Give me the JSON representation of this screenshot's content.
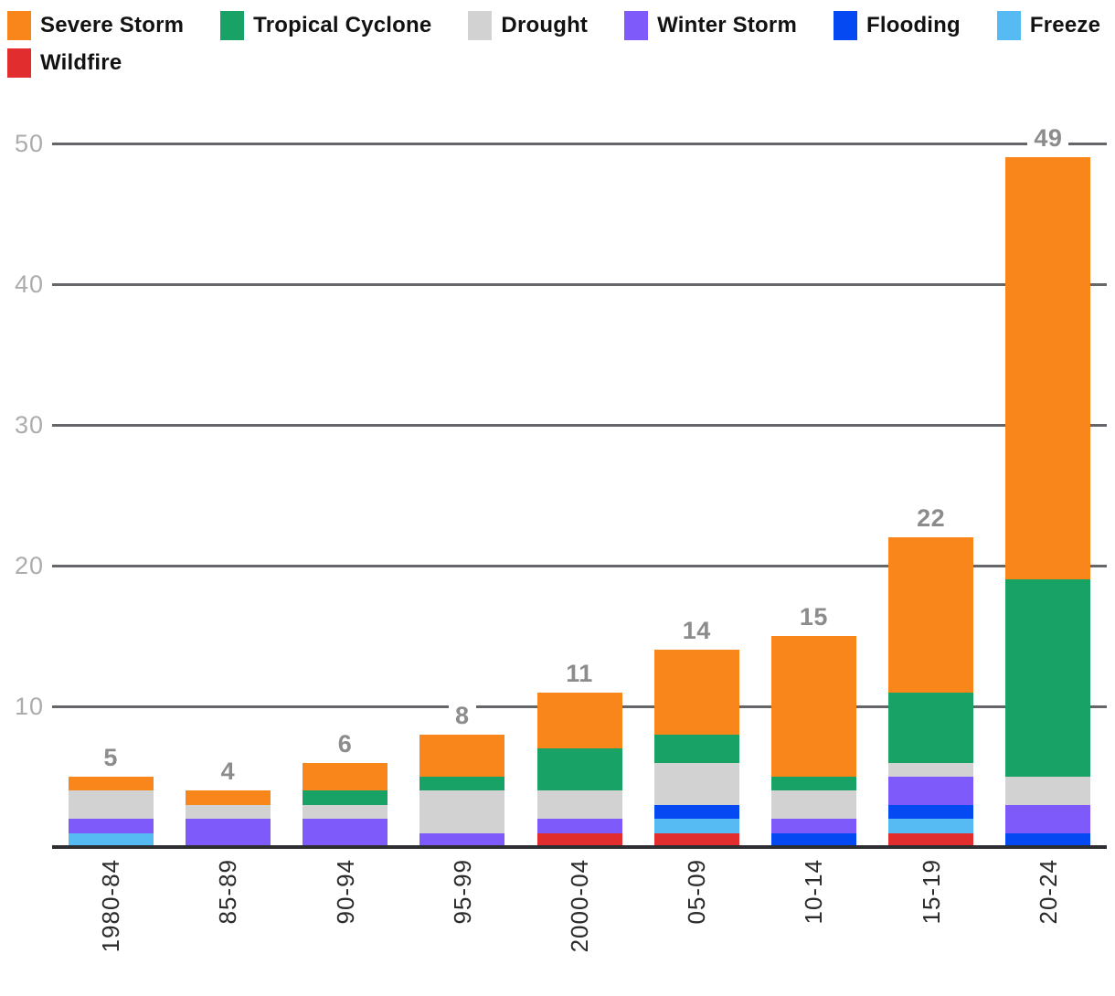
{
  "chart_data": {
    "type": "bar",
    "stacked": true,
    "categories": [
      "1980-84",
      "85-89",
      "90-94",
      "95-99",
      "2000-04",
      "05-09",
      "10-14",
      "15-19",
      "20-24"
    ],
    "series": [
      {
        "name": "Severe Storm",
        "color": "#f9861b",
        "values": [
          1,
          1,
          2,
          3,
          4,
          6,
          10,
          11,
          30
        ]
      },
      {
        "name": "Tropical Cyclone",
        "color": "#18a266",
        "values": [
          0,
          0,
          1,
          1,
          3,
          2,
          1,
          5,
          14
        ]
      },
      {
        "name": "Drought",
        "color": "#d2d2d3",
        "values": [
          2,
          1,
          1,
          3,
          2,
          3,
          2,
          1,
          2
        ]
      },
      {
        "name": "Winter Storm",
        "color": "#7e5afa",
        "values": [
          1,
          2,
          2,
          1,
          1,
          0,
          1,
          2,
          2
        ]
      },
      {
        "name": "Flooding",
        "color": "#0449f2",
        "values": [
          0,
          0,
          0,
          0,
          0,
          1,
          1,
          1,
          1
        ]
      },
      {
        "name": "Freeze",
        "color": "#55bbf2",
        "values": [
          1,
          0,
          0,
          0,
          0,
          1,
          0,
          1,
          0
        ]
      },
      {
        "name": "Wildfire",
        "color": "#e22d2e",
        "values": [
          0,
          0,
          0,
          0,
          1,
          1,
          0,
          1,
          0
        ]
      }
    ],
    "totals": [
      5,
      4,
      6,
      8,
      11,
      14,
      15,
      22,
      49
    ],
    "stack_order_bottom_to_top": [
      "Wildfire",
      "Freeze",
      "Flooding",
      "Winter Storm",
      "Drought",
      "Tropical Cyclone",
      "Severe Storm"
    ],
    "y_ticks": [
      10,
      20,
      30,
      40,
      50
    ],
    "ylim": [
      0,
      50
    ],
    "grid": true,
    "legend_position": "top",
    "legend_rows": [
      6,
      1
    ],
    "xlabel": "",
    "ylabel": "",
    "title": ""
  },
  "style_colors": {
    "gridline": "#65666a",
    "axis_line": "#2d2e31",
    "y_tick_text": "#acacac",
    "total_label_text": "#8c8c8c",
    "x_label_text": "#2b2b2b",
    "legend_text": "#121212",
    "background": "#ffffff"
  }
}
